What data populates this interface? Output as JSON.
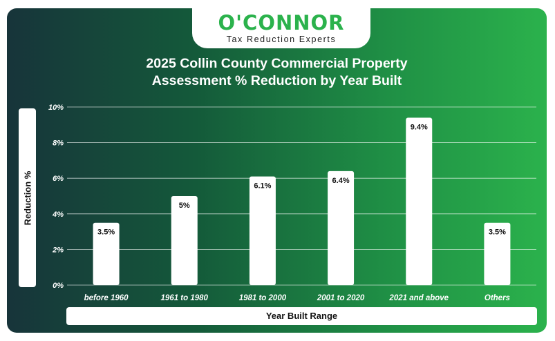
{
  "brand": {
    "name": "O'CONNOR",
    "tagline": "Tax Reduction Experts"
  },
  "chart_data": {
    "type": "bar",
    "title_line1": "2025 Collin County Commercial Property",
    "title_line2": "Assessment % Reduction by Year Built",
    "xlabel": "Year Built Range",
    "ylabel": "Reduction %",
    "categories": [
      "before 1960",
      "1961 to 1980",
      "1981 to 2000",
      "2001 to 2020",
      "2021 and above",
      "Others"
    ],
    "values": [
      3.5,
      5,
      6.1,
      6.4,
      9.4,
      3.5
    ],
    "value_labels": [
      "3.5%",
      "5%",
      "6.1%",
      "6.4%",
      "9.4%",
      "3.5%"
    ],
    "yticks": [
      0,
      2,
      4,
      6,
      8,
      10
    ],
    "ytick_labels": [
      "0%",
      "2%",
      "4%",
      "6%",
      "8%",
      "10%"
    ],
    "ylim": [
      0,
      10
    ],
    "grid": true,
    "colors": {
      "bar": "#ffffff",
      "text": "#ffffff",
      "grid": "#ffffff"
    }
  }
}
